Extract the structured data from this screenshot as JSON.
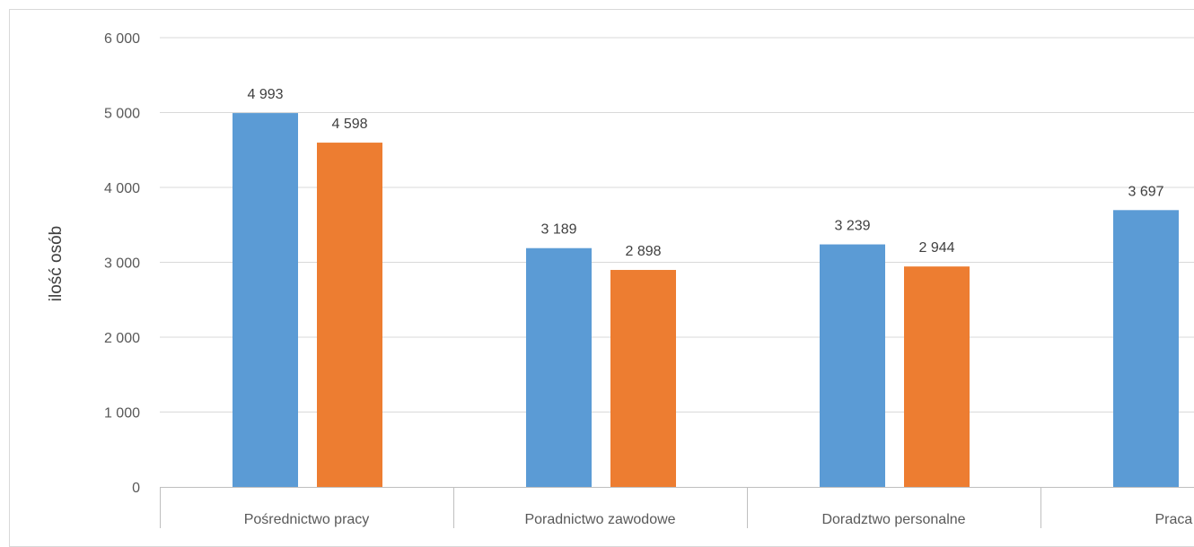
{
  "chart_data": {
    "type": "bar",
    "title": "",
    "xlabel": "",
    "ylabel": "ilość osób",
    "ylim": [
      0,
      6000
    ],
    "yticks": [
      0,
      1000,
      2000,
      3000,
      4000,
      5000,
      6000
    ],
    "ytick_labels": [
      "0",
      "1 000",
      "2 000",
      "3 000",
      "4 000",
      "5 000",
      "6 000"
    ],
    "grid": true,
    "legend": "none",
    "categories": [
      "Pośrednictwo pracy",
      "Poradnictwo zawodowe",
      "Doradztwo personalne",
      "Praca tymczasowa"
    ],
    "category_labels_visible": [
      "Pośrednictwo pracy",
      "Poradnictwo zawodowe",
      "Doradztwo personalne",
      "Praca tym"
    ],
    "series": [
      {
        "color": "#5b9bd5",
        "values": [
          4993,
          3189,
          3239,
          3697
        ],
        "labels": [
          "4 993",
          "3 189",
          "3 239",
          "3 697"
        ]
      },
      {
        "color": "#ed7d31",
        "values": [
          4598,
          2898,
          2944,
          null
        ],
        "labels": [
          "4 598",
          "2 898",
          "2 944",
          ""
        ]
      }
    ]
  }
}
